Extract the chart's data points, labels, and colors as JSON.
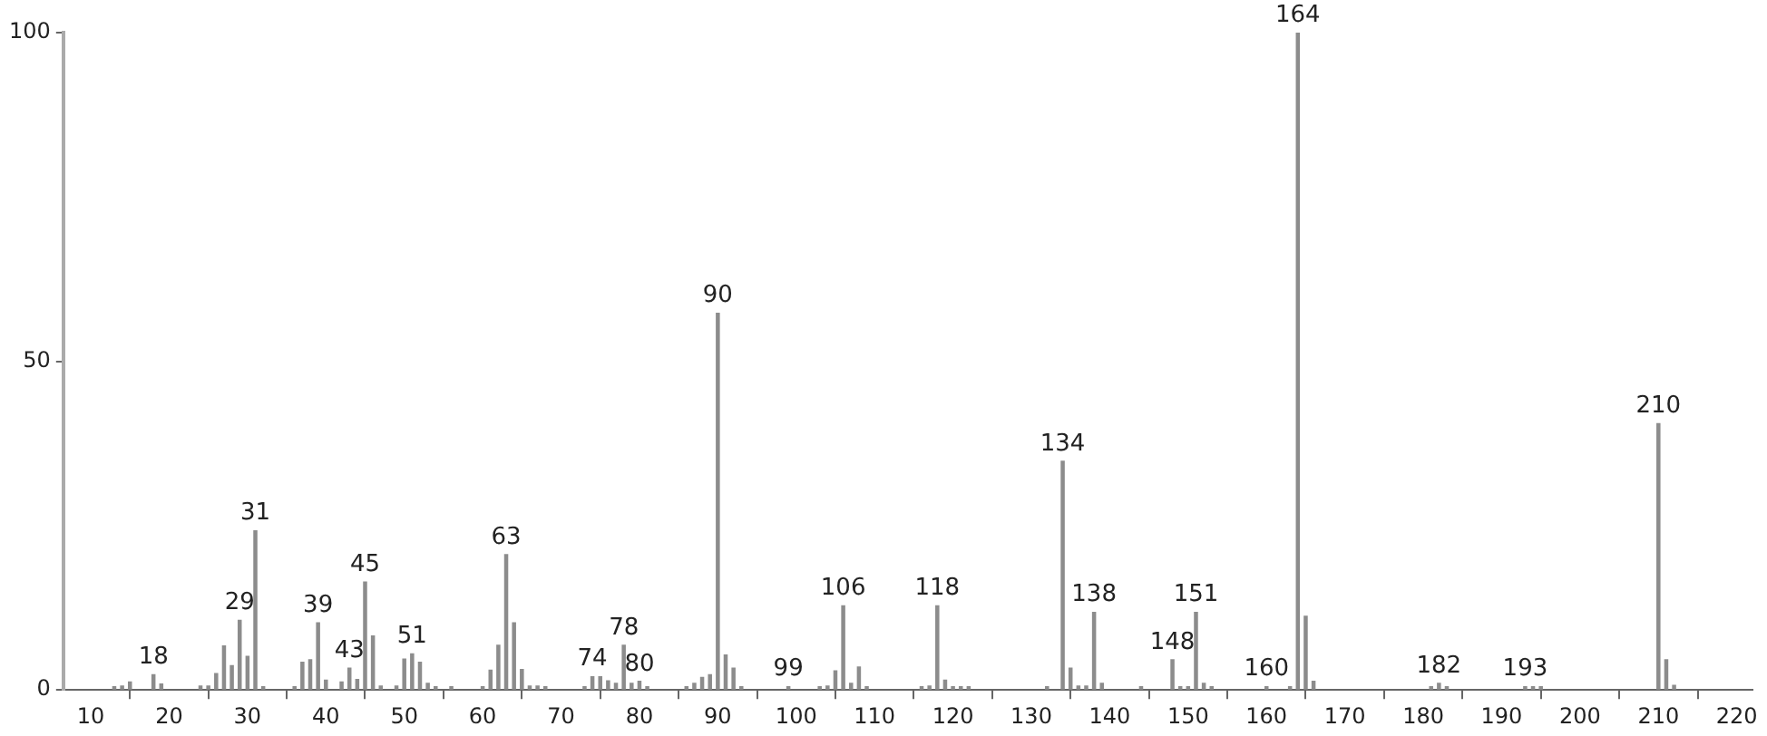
{
  "chart_data": {
    "type": "bar",
    "color": "#8c8c8c",
    "x": [
      13,
      14,
      15,
      18,
      19,
      24,
      25,
      26,
      27,
      28,
      29,
      30,
      31,
      32,
      36,
      37,
      38,
      39,
      40,
      42,
      43,
      44,
      45,
      46,
      47,
      49,
      50,
      51,
      52,
      53,
      54,
      56,
      60,
      61,
      62,
      63,
      64,
      65,
      66,
      67,
      68,
      73,
      74,
      75,
      76,
      77,
      78,
      79,
      80,
      81,
      86,
      87,
      88,
      89,
      90,
      91,
      92,
      93,
      99,
      103,
      104,
      105,
      106,
      107,
      108,
      109,
      116,
      117,
      118,
      119,
      120,
      121,
      122,
      132,
      134,
      135,
      136,
      137,
      138,
      139,
      144,
      148,
      149,
      150,
      151,
      152,
      153,
      160,
      163,
      164,
      165,
      166,
      181,
      182,
      183,
      193,
      194,
      195,
      210,
      211,
      212
    ],
    "values": [
      0.5,
      0.6,
      1.2,
      2.3,
      0.9,
      0.6,
      0.6,
      2.5,
      6.7,
      3.7,
      10.6,
      5.1,
      24.2,
      0.5,
      0.5,
      4.2,
      4.6,
      10.2,
      1.5,
      1.2,
      3.3,
      1.6,
      16.4,
      8.2,
      0.6,
      0.6,
      4.7,
      5.5,
      4.2,
      1.0,
      0.5,
      0.5,
      0.5,
      3.0,
      6.8,
      20.6,
      10.2,
      3.1,
      0.6,
      0.6,
      0.5,
      0.5,
      2.0,
      2.0,
      1.4,
      1.0,
      6.8,
      1.0,
      1.3,
      0.5,
      0.5,
      1.0,
      1.9,
      2.3,
      57.3,
      5.3,
      3.3,
      0.5,
      0.5,
      0.5,
      0.6,
      2.9,
      12.8,
      1.0,
      3.5,
      0.5,
      0.5,
      0.6,
      12.8,
      1.5,
      0.5,
      0.5,
      0.5,
      0.5,
      34.8,
      3.3,
      0.6,
      0.6,
      11.8,
      1.0,
      0.5,
      4.6,
      0.5,
      0.5,
      11.8,
      1.0,
      0.5,
      0.5,
      0.5,
      100,
      11.2,
      1.3,
      0.5,
      1.0,
      0.5,
      0.5,
      0.5,
      0.5,
      40.5,
      4.6,
      0.7
    ],
    "xlim": [
      6.5,
      222
    ],
    "xticks": [
      10,
      20,
      30,
      40,
      50,
      60,
      70,
      80,
      90,
      100,
      110,
      120,
      130,
      140,
      150,
      160,
      170,
      180,
      190,
      200,
      210,
      220
    ],
    "ylim": [
      0,
      100
    ],
    "yticks": [
      0,
      50,
      100
    ],
    "grid": false,
    "legend": false,
    "annotations": [
      {
        "text": "18",
        "x": 18,
        "y": 2.3
      },
      {
        "text": "29",
        "x": 29,
        "y": 10.6
      },
      {
        "text": "31",
        "x": 31,
        "y": 24.2
      },
      {
        "text": "39",
        "x": 39,
        "y": 10.2
      },
      {
        "text": "43",
        "x": 43,
        "y": 3.3
      },
      {
        "text": "45",
        "x": 45,
        "y": 16.4
      },
      {
        "text": "51",
        "x": 51,
        "y": 5.5
      },
      {
        "text": "63",
        "x": 63,
        "y": 20.6
      },
      {
        "text": "74",
        "x": 74,
        "y": 2.0
      },
      {
        "text": "78",
        "x": 78,
        "y": 6.8
      },
      {
        "text": "80",
        "x": 80,
        "y": 1.3
      },
      {
        "text": "90",
        "x": 90,
        "y": 57.3
      },
      {
        "text": "99",
        "x": 99,
        "y": 0.5
      },
      {
        "text": "106",
        "x": 106,
        "y": 12.8
      },
      {
        "text": "118",
        "x": 118,
        "y": 12.8
      },
      {
        "text": "134",
        "x": 134,
        "y": 34.8
      },
      {
        "text": "138",
        "x": 138,
        "y": 11.8
      },
      {
        "text": "148",
        "x": 148,
        "y": 4.6
      },
      {
        "text": "151",
        "x": 151,
        "y": 11.8
      },
      {
        "text": "160",
        "x": 160,
        "y": 0.5
      },
      {
        "text": "164",
        "x": 164,
        "y": 100
      },
      {
        "text": "182",
        "x": 182,
        "y": 1.0
      },
      {
        "text": "193",
        "x": 193,
        "y": 0.5
      },
      {
        "text": "210",
        "x": 210,
        "y": 40.5
      }
    ]
  }
}
